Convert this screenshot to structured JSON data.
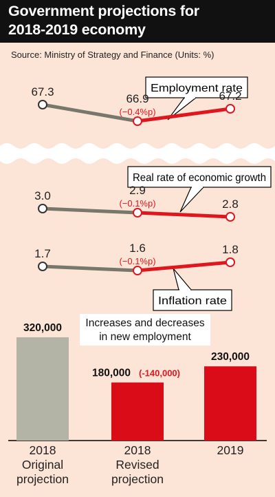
{
  "header": {
    "title_line1": "Government projections for",
    "title_line2": "2018-2019 economy"
  },
  "source": "Source: Ministry of Strategy and Finance (Units: %)",
  "colors": {
    "background": "#fce4d6",
    "header": "#111111",
    "gray_line": "#77776b",
    "red": "#e0161e",
    "gray_bar": "#b3b3a6",
    "red_bar": "#d90c17"
  },
  "chart_data": [
    {
      "type": "line",
      "title": "Employment rate",
      "x": [
        "2018 Original projection",
        "2018 Revised projection",
        "2019"
      ],
      "values": [
        67.3,
        66.9,
        67.2
      ],
      "labels": [
        "67.3",
        "66.9",
        "67.2"
      ],
      "change_note": "(−0.4%p)"
    },
    {
      "type": "line",
      "title": "Real rate of economic growth",
      "x": [
        "2018 Original projection",
        "2018 Revised projection",
        "2019"
      ],
      "values": [
        3.0,
        2.9,
        2.8
      ],
      "labels": [
        "3.0",
        "2.9",
        "2.8"
      ],
      "change_note": "(−0.1%p)"
    },
    {
      "type": "line",
      "title": "Inflation rate",
      "x": [
        "2018 Original projection",
        "2018 Revised projection",
        "2019"
      ],
      "values": [
        1.7,
        1.6,
        1.8
      ],
      "labels": [
        "1.7",
        "1.6",
        "1.8"
      ],
      "change_note": "(−0.1%p)"
    },
    {
      "type": "bar",
      "title": "Increases and decreases in new employment",
      "title_lines": [
        "Increases and decreases",
        "in new employment"
      ],
      "categories": [
        "2018 Original projection",
        "2018 Revised projection",
        "2019"
      ],
      "category_lines": [
        [
          "2018",
          "Original",
          "projection"
        ],
        [
          "2018",
          "Revised",
          "projection"
        ],
        [
          "2019"
        ]
      ],
      "values": [
        320000,
        180000,
        230000
      ],
      "labels": [
        "320,000",
        "180,000",
        "230,000"
      ],
      "change_note": "(-140,000)"
    }
  ]
}
